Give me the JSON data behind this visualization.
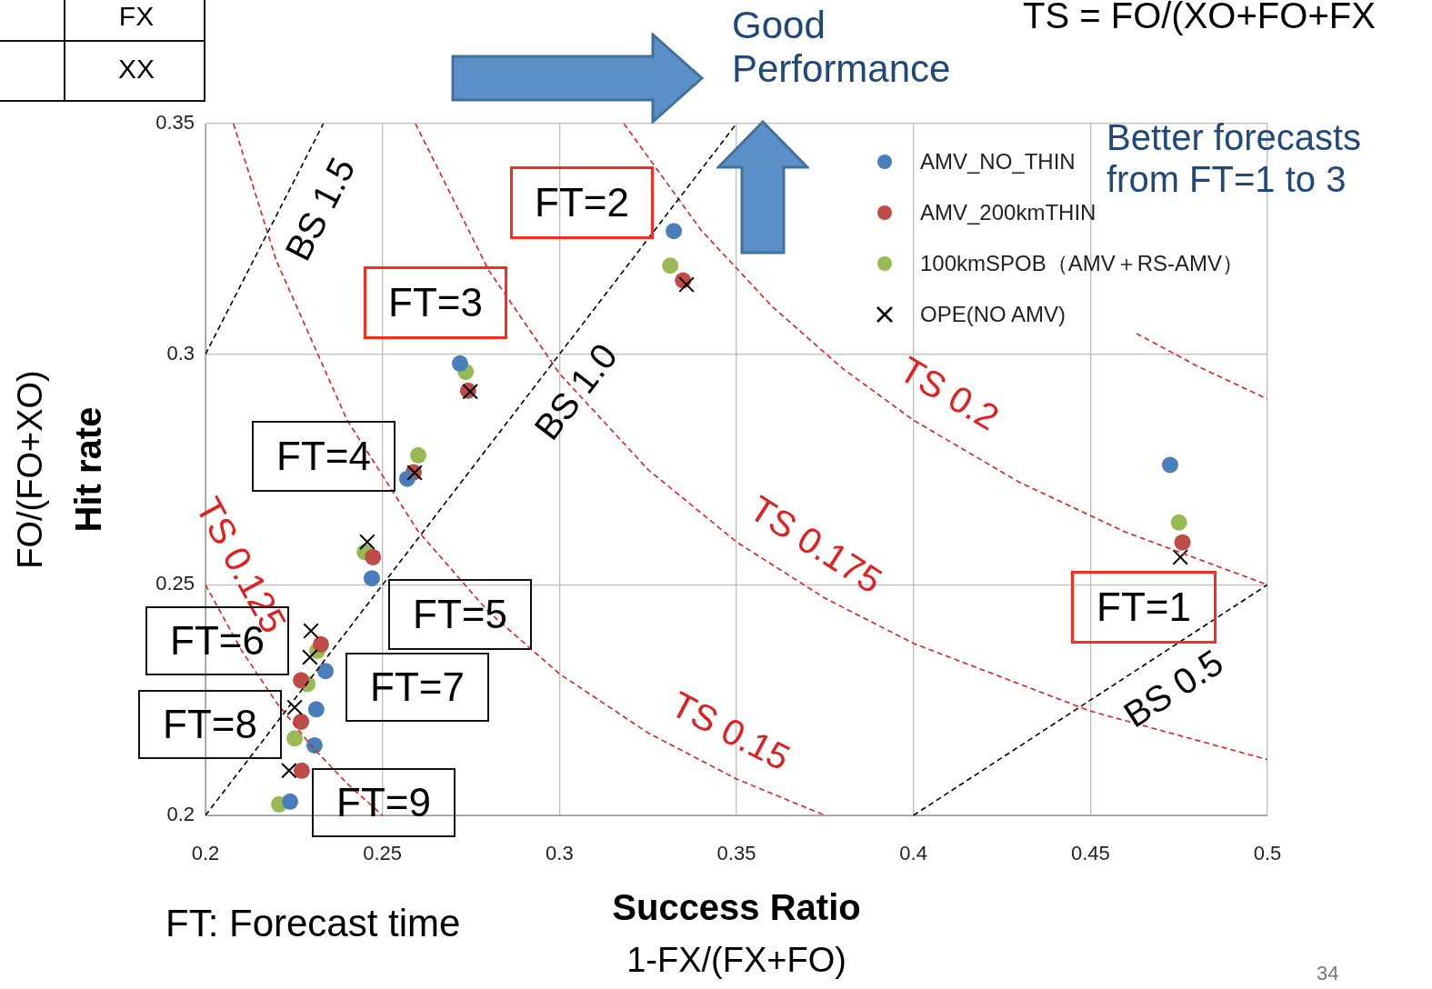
{
  "chart_data": {
    "type": "scatter",
    "xlabel": "Success Ratio\n1-FX/(FX+FO)",
    "ylabel": "Hit rate\nFO/(FO+XO)",
    "xlim": [
      0.2,
      0.5
    ],
    "xticks": [
      0.2,
      0.25,
      0.3,
      0.35,
      0.4,
      0.45,
      0.5
    ],
    "ylim": [
      0.2,
      0.35
    ],
    "yticks": [
      0.2,
      0.25,
      0.3,
      0.35
    ],
    "grid": true,
    "legend": "top right",
    "series": [
      {
        "name": "AMV_NO_THIN",
        "color": "#4a7ebb",
        "marker": "circle",
        "x": [
          0.4725,
          0.3323,
          0.2719,
          0.257,
          0.247,
          0.2339,
          0.2313,
          0.2308,
          0.2239
        ],
        "values": [
          0.276,
          0.3267,
          0.298,
          0.273,
          0.2514,
          0.2313,
          0.223,
          0.2152,
          0.203
        ]
      },
      {
        "name": "AMV_200kmTHIN",
        "color": "#be4b48",
        "marker": "circle",
        "x": [
          0.476,
          0.3349,
          0.2742,
          0.2588,
          0.2473,
          0.2326,
          0.227,
          0.227,
          0.2272
        ],
        "values": [
          0.2592,
          0.316,
          0.2921,
          0.2744,
          0.256,
          0.2371,
          0.2293,
          0.2203,
          0.2097
        ]
      },
      {
        "name": "100kmSPOB（AMV＋RS-AMV）",
        "color": "#98b954",
        "marker": "circle",
        "x": [
          0.475,
          0.3313,
          0.2735,
          0.2601,
          0.245,
          0.2316,
          0.2288,
          0.2252,
          0.2208
        ],
        "values": [
          0.2635,
          0.3192,
          0.2962,
          0.2781,
          0.2571,
          0.2357,
          0.2285,
          0.2167,
          0.2024
        ]
      },
      {
        "name": "OPE(NO AMV)",
        "color": "#000000",
        "marker": "cross",
        "x": [
          0.4754,
          0.3359,
          0.2748,
          0.2591,
          0.2457,
          0.2298,
          0.2295,
          0.2252,
          0.2236
        ],
        "values": [
          0.256,
          0.3151,
          0.2919,
          0.2743,
          0.2593,
          0.24,
          0.2343,
          0.2234,
          0.2097
        ]
      },
      {
        "type": "line",
        "color": "#000000",
        "marker": "none",
        "line_style": "dashed",
        "x": [
          0.2,
          0.2333
        ],
        "values": [
          0.3,
          0.35
        ]
      },
      {
        "type": "line",
        "color": "#000000",
        "marker": "none",
        "line_style": "dashed",
        "x": [
          0.2,
          0.35
        ],
        "values": [
          0.2,
          0.35
        ]
      },
      {
        "type": "line",
        "color": "#000000",
        "marker": "none",
        "line_style": "dashed",
        "x": [
          0.4,
          0.5
        ],
        "values": [
          0.2,
          0.25
        ]
      },
      {
        "type": "line",
        "color": "#e41e1e",
        "marker": "none",
        "line_style": "dashed",
        "x": [
          0.2,
          0.21,
          0.22,
          0.23,
          0.24,
          0.25
        ],
        "values": [
          0.25,
          0.236,
          0.2245,
          0.215,
          0.2069,
          0.2
        ]
      },
      {
        "type": "line",
        "color": "#e41e1e",
        "marker": "none",
        "line_style": "dashed",
        "x": [
          0.2079,
          0.22,
          0.24,
          0.26,
          0.28,
          0.3,
          0.325,
          0.35,
          0.375
        ],
        "values": [
          0.35,
          0.3203,
          0.2857,
          0.2617,
          0.2441,
          0.2307,
          0.2179,
          0.2079,
          0.2
        ]
      },
      {
        "type": "line",
        "color": "#e41e1e",
        "marker": "none",
        "line_style": "dashed",
        "x": [
          0.2593,
          0.28,
          0.3,
          0.325,
          0.35,
          0.375,
          0.4,
          0.45,
          0.5
        ],
        "values": [
          0.35,
          0.3182,
          0.2958,
          0.275,
          0.2593,
          0.2471,
          0.2373,
          0.2226,
          0.2121
        ]
      },
      {
        "type": "line",
        "color": "#e41e1e",
        "marker": "none",
        "line_style": "dashed",
        "x": [
          0.3182,
          0.34,
          0.36,
          0.38,
          0.4,
          0.43,
          0.46,
          0.5
        ],
        "values": [
          0.35,
          0.3269,
          0.3104,
          0.2969,
          0.2857,
          0.2722,
          0.2614,
          0.25
        ]
      },
      {
        "type": "line",
        "color": "#e41e1e",
        "marker": "none",
        "line_style": "dashed",
        "x": [
          0.463,
          0.48,
          0.5
        ],
        "values": [
          0.3045,
          0.2975,
          0.2903
        ]
      }
    ],
    "annotations": [
      {
        "text": "BS 1.5",
        "x": 0.2234,
        "y": 0.335
      },
      {
        "text": "BS 1.0",
        "x": 0.2966,
        "y": 0.2966
      },
      {
        "text": "BS 0.5",
        "x": 0.4679,
        "y": 0.234
      },
      {
        "text": "TS 0.2",
        "x": 0.4043,
        "y": 0.2839
      },
      {
        "text": "TS 0.175",
        "x": 0.3663,
        "y": 0.2513
      },
      {
        "text": "TS 0.15",
        "x": 0.343,
        "y": 0.2105
      },
      {
        "text": "TS 0.125",
        "x": 0.2,
        "y": 0.25
      },
      "FT=1",
      "FT=2",
      "FT=3",
      "FT=4",
      "FT=5",
      "FT=6",
      "FT=7",
      "FT=8",
      "FT=9",
      "Good Performance",
      "Better forecasts from FT=1 to 3",
      "FT: Forecast time",
      "TS = FO/(XO+FO+FX",
      "FX",
      "XX",
      "34"
    ]
  }
}
